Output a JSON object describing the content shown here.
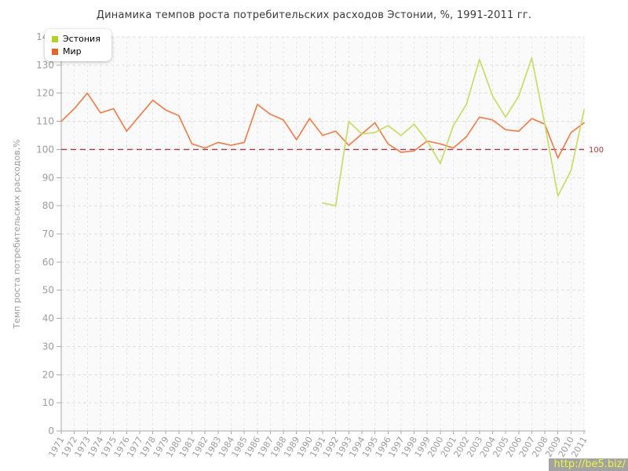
{
  "title": "Динамика темпов роста потребительских расходов Эстонии, %, 1991-2011 гг.",
  "watermark": "http://be5.biz/",
  "legend": {
    "items": [
      {
        "label": "Эстония",
        "color": "#b2d22b"
      },
      {
        "label": "Мир",
        "color": "#e2632b"
      }
    ]
  },
  "chart_data": {
    "type": "line",
    "title": "Динамика темпов роста потребительских расходов Эстонии, %, 1991-2011 гг.",
    "xlabel": "",
    "ylabel": "Темп роста потребительских расходов,%",
    "ylim": [
      0,
      140
    ],
    "ytick_step": 10,
    "grid": true,
    "legend_position": "top-left",
    "x": [
      1971,
      1972,
      1973,
      1974,
      1975,
      1976,
      1977,
      1978,
      1979,
      1980,
      1981,
      1982,
      1983,
      1984,
      1985,
      1986,
      1987,
      1988,
      1989,
      1990,
      1991,
      1992,
      1993,
      1994,
      1995,
      1996,
      1997,
      1998,
      1999,
      2000,
      2001,
      2002,
      2003,
      2004,
      2005,
      2006,
      2007,
      2008,
      2009,
      2010,
      2011
    ],
    "series": [
      {
        "name": "Эстония",
        "marker_color": "#b2d22b",
        "line_color": "#c9db68",
        "values": [
          null,
          null,
          null,
          null,
          null,
          null,
          null,
          null,
          null,
          null,
          null,
          null,
          null,
          null,
          null,
          null,
          null,
          null,
          null,
          null,
          81,
          80,
          110,
          105.5,
          106,
          108.5,
          105,
          109,
          103,
          95,
          108.5,
          116,
          132,
          119,
          111.5,
          119,
          132.5,
          109,
          83.5,
          92.5,
          114
        ]
      },
      {
        "name": "Мир",
        "marker_color": "#e2632b",
        "line_color": "#eb814f",
        "values": [
          110,
          114.5,
          120,
          113,
          114.5,
          106.5,
          112,
          117.5,
          114,
          112,
          102,
          100.5,
          102.5,
          101.5,
          102.5,
          116,
          112.5,
          110.5,
          103.5,
          111,
          105,
          106.5,
          101.5,
          105.5,
          109.5,
          102,
          99,
          99.5,
          103,
          102,
          100.5,
          104.5,
          111.5,
          110.5,
          107,
          106.5,
          111,
          109,
          97,
          106,
          109.5
        ]
      }
    ],
    "reference_line": {
      "value": 100,
      "label": "100",
      "color": "#a13d4d",
      "label_color": "#a13d3d"
    }
  }
}
